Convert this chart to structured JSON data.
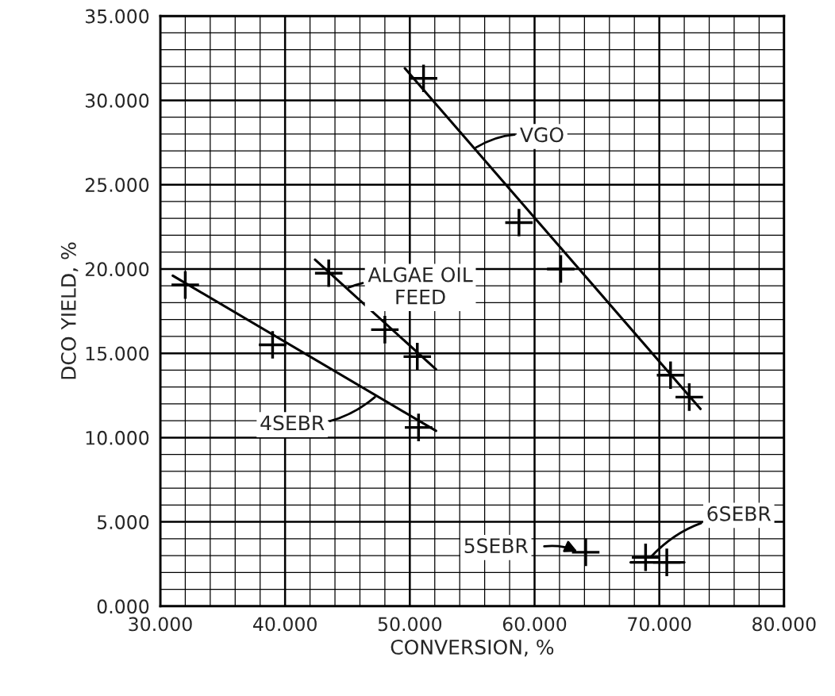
{
  "chart_data": {
    "type": "scatter",
    "xlabel": "CONVERSION, %",
    "ylabel": "DCO YIELD, %",
    "xlim": [
      30,
      80
    ],
    "ylim": [
      0,
      35
    ],
    "xticks": [
      {
        "value": 30,
        "label": "30.000"
      },
      {
        "value": 40,
        "label": "40.000"
      },
      {
        "value": 50,
        "label": "50.000"
      },
      {
        "value": 60,
        "label": "60.000"
      },
      {
        "value": 70,
        "label": "70.000"
      },
      {
        "value": 80,
        "label": "80.000"
      }
    ],
    "yticks": [
      {
        "value": 0,
        "label": "0.000"
      },
      {
        "value": 5,
        "label": "5.000"
      },
      {
        "value": 10,
        "label": "10.000"
      },
      {
        "value": 15,
        "label": "15.000"
      },
      {
        "value": 20,
        "label": "20.000"
      },
      {
        "value": 25,
        "label": "25.000"
      },
      {
        "value": 30,
        "label": "30.000"
      },
      {
        "value": 35,
        "label": "35.000"
      }
    ],
    "grid": true,
    "marker": "cross",
    "legend": false,
    "series": [
      {
        "color": "#000000",
        "x": [
          51.1,
          58.75,
          62.1,
          70.9,
          72.4
        ],
        "values": [
          31.3,
          22.75,
          20.0,
          13.7,
          12.4
        ]
      },
      {
        "type": "line",
        "marker": "none",
        "color": "#000000",
        "x": [
          49.6,
          73.3
        ],
        "values": [
          31.9,
          11.7
        ]
      },
      {
        "color": "#000000",
        "x": [
          43.5,
          48.0,
          50.6
        ],
        "values": [
          19.75,
          16.4,
          14.8
        ]
      },
      {
        "type": "line",
        "marker": "none",
        "color": "#000000",
        "x": [
          42.4,
          52.1
        ],
        "values": [
          20.55,
          14.05
        ]
      },
      {
        "color": "#000000",
        "x": [
          32.0,
          39.0,
          50.7
        ],
        "values": [
          19.05,
          15.5,
          10.6
        ]
      },
      {
        "type": "line",
        "marker": "none",
        "color": "#000000",
        "x": [
          31.0,
          52.1
        ],
        "values": [
          19.6,
          10.4
        ]
      },
      {
        "color": "#000000",
        "x": [
          64.1
        ],
        "values": [
          3.2
        ]
      },
      {
        "color": "#000000",
        "x": [
          68.9,
          70.6
        ],
        "values": [
          2.9,
          2.6
        ]
      },
      {
        "type": "line",
        "marker": "none",
        "color": "#000000",
        "x": [
          67.7,
          72.0
        ],
        "values": [
          2.6,
          2.6
        ]
      }
    ],
    "annotations": [
      {
        "text": "VGO",
        "x": 55.3,
        "y": 27.2
      },
      {
        "text": "ALGAE OIL\nFEED",
        "x": 45.1,
        "y": 18.9
      },
      {
        "text": "4SEBR",
        "x": 47.2,
        "y": 12.4
      },
      "5SEBR",
      {
        "text": "6SEBR",
        "x": 69.3,
        "y": 2.9
      }
    ]
  }
}
